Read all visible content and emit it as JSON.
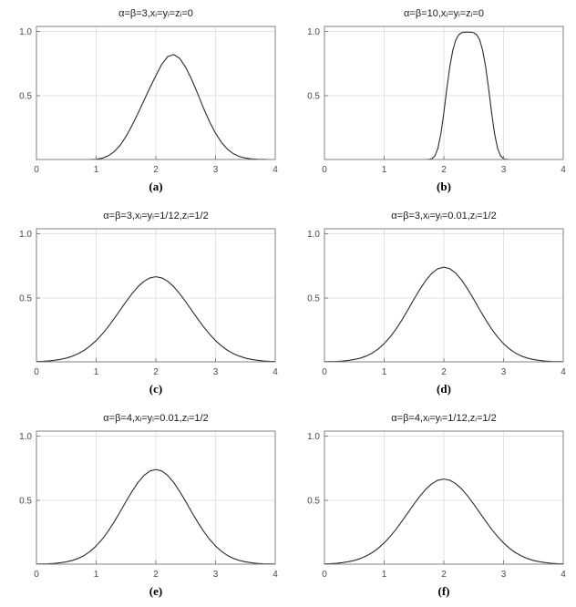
{
  "style": {
    "background": "#ffffff",
    "grid_color": "#e3e3e3",
    "border_color": "#808080",
    "curve_color": "#2b2b2b",
    "tick_color": "#808080",
    "tick_label_color": "#4a4a4a"
  },
  "chart_data": [
    {
      "type": "line",
      "title": "α=β=3,xᵢ=yᵢ=zᵢ=0",
      "label": "(a)",
      "xlim": [
        0,
        4
      ],
      "ylim": [
        0,
        1.04
      ],
      "xticks": [
        0,
        1,
        2,
        3,
        4
      ],
      "yticks": [
        0.5,
        1.0
      ],
      "ytick_labels": [
        "0.5",
        "1.0"
      ],
      "grid": true,
      "x": [
        0,
        0.1,
        0.2,
        0.3,
        0.4,
        0.5,
        0.6,
        0.7,
        0.8,
        0.9,
        1.0,
        1.1,
        1.2,
        1.3,
        1.4,
        1.5,
        1.6,
        1.7,
        1.8,
        1.9,
        2.0,
        2.1,
        2.2,
        2.3,
        2.4,
        2.5,
        2.6,
        2.7,
        2.8,
        2.9,
        3.0,
        3.1,
        3.2,
        3.3,
        3.4,
        3.5,
        3.6,
        3.7,
        3.8,
        3.9,
        4.0
      ],
      "y": [
        0,
        0,
        0,
        0,
        0,
        0,
        0,
        0,
        0,
        0,
        0.002,
        0.01,
        0.028,
        0.06,
        0.11,
        0.18,
        0.265,
        0.36,
        0.46,
        0.56,
        0.655,
        0.745,
        0.805,
        0.82,
        0.79,
        0.72,
        0.625,
        0.515,
        0.4,
        0.295,
        0.205,
        0.133,
        0.08,
        0.045,
        0.023,
        0.011,
        0.005,
        0.002,
        0.001,
        0,
        0
      ]
    },
    {
      "type": "line",
      "title": "α=β=10,xᵢ=yᵢ=zᵢ=0",
      "label": "(b)",
      "xlim": [
        0,
        4
      ],
      "ylim": [
        0,
        1.04
      ],
      "xticks": [
        0,
        1,
        2,
        3,
        4
      ],
      "yticks": [
        0.5,
        1.0
      ],
      "ytick_labels": [
        "0.5",
        "1.0"
      ],
      "grid": true,
      "x": [
        0,
        0.5,
        1.0,
        1.4,
        1.5,
        1.6,
        1.7,
        1.75,
        1.8,
        1.85,
        1.9,
        1.95,
        2.0,
        2.05,
        2.1,
        2.15,
        2.2,
        2.25,
        2.3,
        2.35,
        2.4,
        2.45,
        2.5,
        2.55,
        2.6,
        2.65,
        2.7,
        2.75,
        2.8,
        2.85,
        2.9,
        2.95,
        3.0,
        3.05,
        3.1,
        3.2,
        3.5,
        4.0
      ],
      "y": [
        0,
        0,
        0,
        0,
        0,
        0,
        0,
        0.001,
        0.006,
        0.028,
        0.087,
        0.2,
        0.366,
        0.554,
        0.725,
        0.854,
        0.935,
        0.975,
        0.991,
        0.995,
        0.995,
        0.995,
        0.991,
        0.975,
        0.935,
        0.854,
        0.725,
        0.554,
        0.366,
        0.2,
        0.087,
        0.028,
        0.006,
        0.001,
        0,
        0,
        0,
        0
      ]
    },
    {
      "type": "line",
      "title": "α=β=3,xᵢ=yᵢ=1/12,zᵢ=1/2",
      "label": "(c)",
      "xlim": [
        0,
        4
      ],
      "ylim": [
        0,
        1.04
      ],
      "xticks": [
        0,
        1,
        2,
        3,
        4
      ],
      "yticks": [
        0.5,
        1.0
      ],
      "ytick_labels": [
        "0.5",
        "1.0"
      ],
      "grid": true,
      "x": [
        0,
        0.1,
        0.2,
        0.3,
        0.4,
        0.5,
        0.6,
        0.7,
        0.8,
        0.9,
        1.0,
        1.1,
        1.2,
        1.3,
        1.4,
        1.5,
        1.6,
        1.7,
        1.8,
        1.9,
        2.0,
        2.1,
        2.2,
        2.3,
        2.4,
        2.5,
        2.6,
        2.7,
        2.8,
        2.9,
        3.0,
        3.1,
        3.2,
        3.3,
        3.4,
        3.5,
        3.6,
        3.7,
        3.8,
        3.9,
        4.0
      ],
      "y": [
        0.003,
        0.004,
        0.007,
        0.012,
        0.019,
        0.029,
        0.044,
        0.064,
        0.09,
        0.124,
        0.166,
        0.216,
        0.273,
        0.337,
        0.403,
        0.47,
        0.532,
        0.587,
        0.629,
        0.656,
        0.665,
        0.656,
        0.629,
        0.587,
        0.532,
        0.47,
        0.403,
        0.337,
        0.273,
        0.216,
        0.166,
        0.124,
        0.09,
        0.064,
        0.044,
        0.029,
        0.019,
        0.012,
        0.007,
        0.004,
        0.003
      ]
    },
    {
      "type": "line",
      "title": "α=β=3,xᵢ=yᵢ=0.01,zᵢ=1/2",
      "label": "(d)",
      "xlim": [
        0,
        4
      ],
      "ylim": [
        0,
        1.04
      ],
      "xticks": [
        0,
        1,
        2,
        3,
        4
      ],
      "yticks": [
        0.5,
        1.0
      ],
      "ytick_labels": [
        "0.5",
        "1.0"
      ],
      "grid": true,
      "x": [
        0,
        0.1,
        0.2,
        0.3,
        0.4,
        0.5,
        0.6,
        0.7,
        0.8,
        0.9,
        1.0,
        1.1,
        1.2,
        1.3,
        1.4,
        1.5,
        1.6,
        1.7,
        1.8,
        1.9,
        2.0,
        2.1,
        2.2,
        2.3,
        2.4,
        2.5,
        2.6,
        2.7,
        2.8,
        2.9,
        3.0,
        3.1,
        3.2,
        3.3,
        3.4,
        3.5,
        3.6,
        3.7,
        3.8,
        3.9,
        4.0
      ],
      "y": [
        0.001,
        0.002,
        0.003,
        0.006,
        0.011,
        0.018,
        0.029,
        0.045,
        0.068,
        0.1,
        0.142,
        0.194,
        0.257,
        0.329,
        0.408,
        0.49,
        0.568,
        0.638,
        0.693,
        0.728,
        0.74,
        0.728,
        0.693,
        0.638,
        0.568,
        0.49,
        0.408,
        0.329,
        0.257,
        0.194,
        0.142,
        0.1,
        0.068,
        0.045,
        0.029,
        0.018,
        0.011,
        0.006,
        0.003,
        0.002,
        0.001
      ]
    },
    {
      "type": "line",
      "title": "α=β=4,xᵢ=yᵢ=0.01,zᵢ=1/2",
      "label": "(e)",
      "xlim": [
        0,
        4
      ],
      "ylim": [
        0,
        1.04
      ],
      "xticks": [
        0,
        1,
        2,
        3,
        4
      ],
      "yticks": [
        0.5,
        1.0
      ],
      "ytick_labels": [
        "0.5",
        "1.0"
      ],
      "grid": true,
      "x": [
        0,
        0.1,
        0.2,
        0.3,
        0.4,
        0.5,
        0.6,
        0.7,
        0.8,
        0.9,
        1.0,
        1.1,
        1.2,
        1.3,
        1.4,
        1.5,
        1.6,
        1.7,
        1.8,
        1.9,
        2.0,
        2.1,
        2.2,
        2.3,
        2.4,
        2.5,
        2.6,
        2.7,
        2.8,
        2.9,
        3.0,
        3.1,
        3.2,
        3.3,
        3.4,
        3.5,
        3.6,
        3.7,
        3.8,
        3.9,
        4.0
      ],
      "y": [
        0.001,
        0.002,
        0.003,
        0.006,
        0.011,
        0.018,
        0.029,
        0.045,
        0.068,
        0.1,
        0.142,
        0.194,
        0.257,
        0.329,
        0.408,
        0.49,
        0.568,
        0.638,
        0.693,
        0.728,
        0.74,
        0.728,
        0.693,
        0.638,
        0.568,
        0.49,
        0.408,
        0.329,
        0.257,
        0.194,
        0.142,
        0.1,
        0.068,
        0.045,
        0.029,
        0.018,
        0.011,
        0.006,
        0.003,
        0.002,
        0.001
      ]
    },
    {
      "type": "line",
      "title": "α=β=4,xᵢ=yᵢ=1/12,zᵢ=1/2",
      "label": "(f)",
      "xlim": [
        0,
        4
      ],
      "ylim": [
        0,
        1.04
      ],
      "xticks": [
        0,
        1,
        2,
        3,
        4
      ],
      "yticks": [
        0.5,
        1.0
      ],
      "ytick_labels": [
        "0.5",
        "1.0"
      ],
      "grid": true,
      "x": [
        0,
        0.1,
        0.2,
        0.3,
        0.4,
        0.5,
        0.6,
        0.7,
        0.8,
        0.9,
        1.0,
        1.1,
        1.2,
        1.3,
        1.4,
        1.5,
        1.6,
        1.7,
        1.8,
        1.9,
        2.0,
        2.1,
        2.2,
        2.3,
        2.4,
        2.5,
        2.6,
        2.7,
        2.8,
        2.9,
        3.0,
        3.1,
        3.2,
        3.3,
        3.4,
        3.5,
        3.6,
        3.7,
        3.8,
        3.9,
        4.0
      ],
      "y": [
        0.003,
        0.004,
        0.007,
        0.012,
        0.019,
        0.029,
        0.044,
        0.064,
        0.09,
        0.124,
        0.166,
        0.216,
        0.273,
        0.337,
        0.403,
        0.47,
        0.532,
        0.587,
        0.629,
        0.656,
        0.665,
        0.656,
        0.629,
        0.587,
        0.532,
        0.47,
        0.403,
        0.337,
        0.273,
        0.216,
        0.166,
        0.124,
        0.09,
        0.064,
        0.044,
        0.029,
        0.019,
        0.012,
        0.007,
        0.004,
        0.003
      ]
    }
  ]
}
